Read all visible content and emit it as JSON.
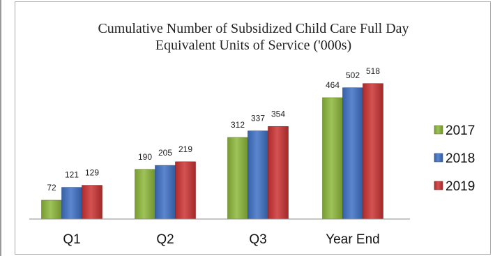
{
  "chart_data": {
    "type": "bar",
    "title_lines": [
      "Cumulative Number of Subsidized Child Care Full Day",
      "Equivalent Units of Service ('000s)"
    ],
    "categories": [
      "Q1",
      "Q2",
      "Q3",
      "Year End"
    ],
    "series": [
      {
        "name": "2017",
        "color": "#8db83a",
        "values": [
          72,
          190,
          312,
          464
        ]
      },
      {
        "name": "2018",
        "color": "#3f72c6",
        "values": [
          121,
          205,
          337,
          502
        ]
      },
      {
        "name": "2019",
        "color": "#cc3333",
        "values": [
          129,
          219,
          354,
          518
        ]
      }
    ],
    "ylim": [
      0,
      600
    ],
    "grid": false,
    "data_labels": true,
    "legend_position": "right"
  }
}
